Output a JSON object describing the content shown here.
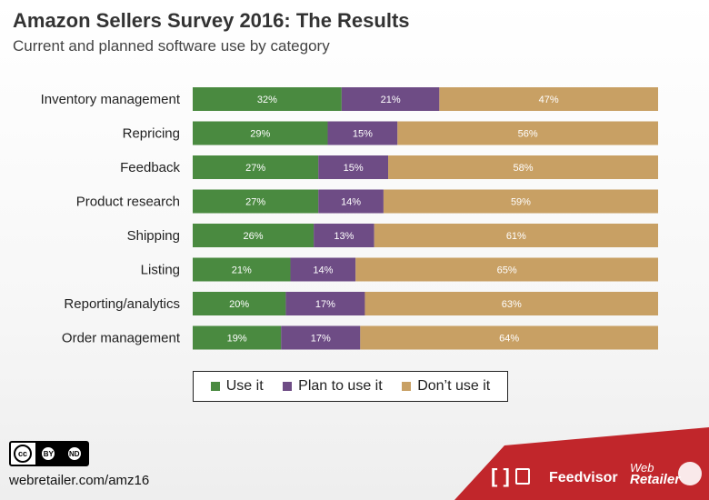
{
  "header": {
    "title": "Amazon Sellers Survey 2016: The Results",
    "subtitle": "Current and planned software use by category"
  },
  "colors": {
    "use": "#4a8a40",
    "plan": "#6e4c85",
    "dont": "#c8a064",
    "footer_red": "#c1262b"
  },
  "chart_data": {
    "type": "bar",
    "orientation": "horizontal",
    "stacked": true,
    "percent_scale": true,
    "categories": [
      "Inventory management",
      "Repricing",
      "Feedback",
      "Product research",
      "Shipping",
      "Listing",
      "Reporting/analytics",
      "Order management"
    ],
    "series": [
      {
        "name": "Use it",
        "values": [
          32,
          29,
          27,
          27,
          26,
          21,
          20,
          19
        ],
        "labels": [
          "32%",
          "29%",
          "27%",
          "27%",
          "26%",
          "21%",
          "20%",
          "19%"
        ]
      },
      {
        "name": "Plan to use it",
        "values": [
          21,
          15,
          15,
          14,
          13,
          14,
          17,
          17
        ],
        "labels": [
          "21%",
          "15%",
          "15%",
          "14%",
          "13%",
          "14%",
          "17%",
          "17%"
        ]
      },
      {
        "name": "Don’t use it",
        "values": [
          47,
          56,
          58,
          59,
          61,
          65,
          63,
          64
        ],
        "labels": [
          "47%",
          "56%",
          "58%",
          "59%",
          "61%",
          "65%",
          "63%",
          "64%"
        ]
      }
    ],
    "xlim": [
      0,
      100
    ],
    "legend_position": "bottom"
  },
  "footer": {
    "url": "webretailer.com/amz16",
    "license_badge": {
      "main": "cc",
      "parts": [
        "BY",
        "ND"
      ]
    },
    "brands": {
      "bracket_glyph": "[ ]",
      "feedvisor": "Feedvisor",
      "web": "Web",
      "retailer": "Retailer"
    }
  }
}
